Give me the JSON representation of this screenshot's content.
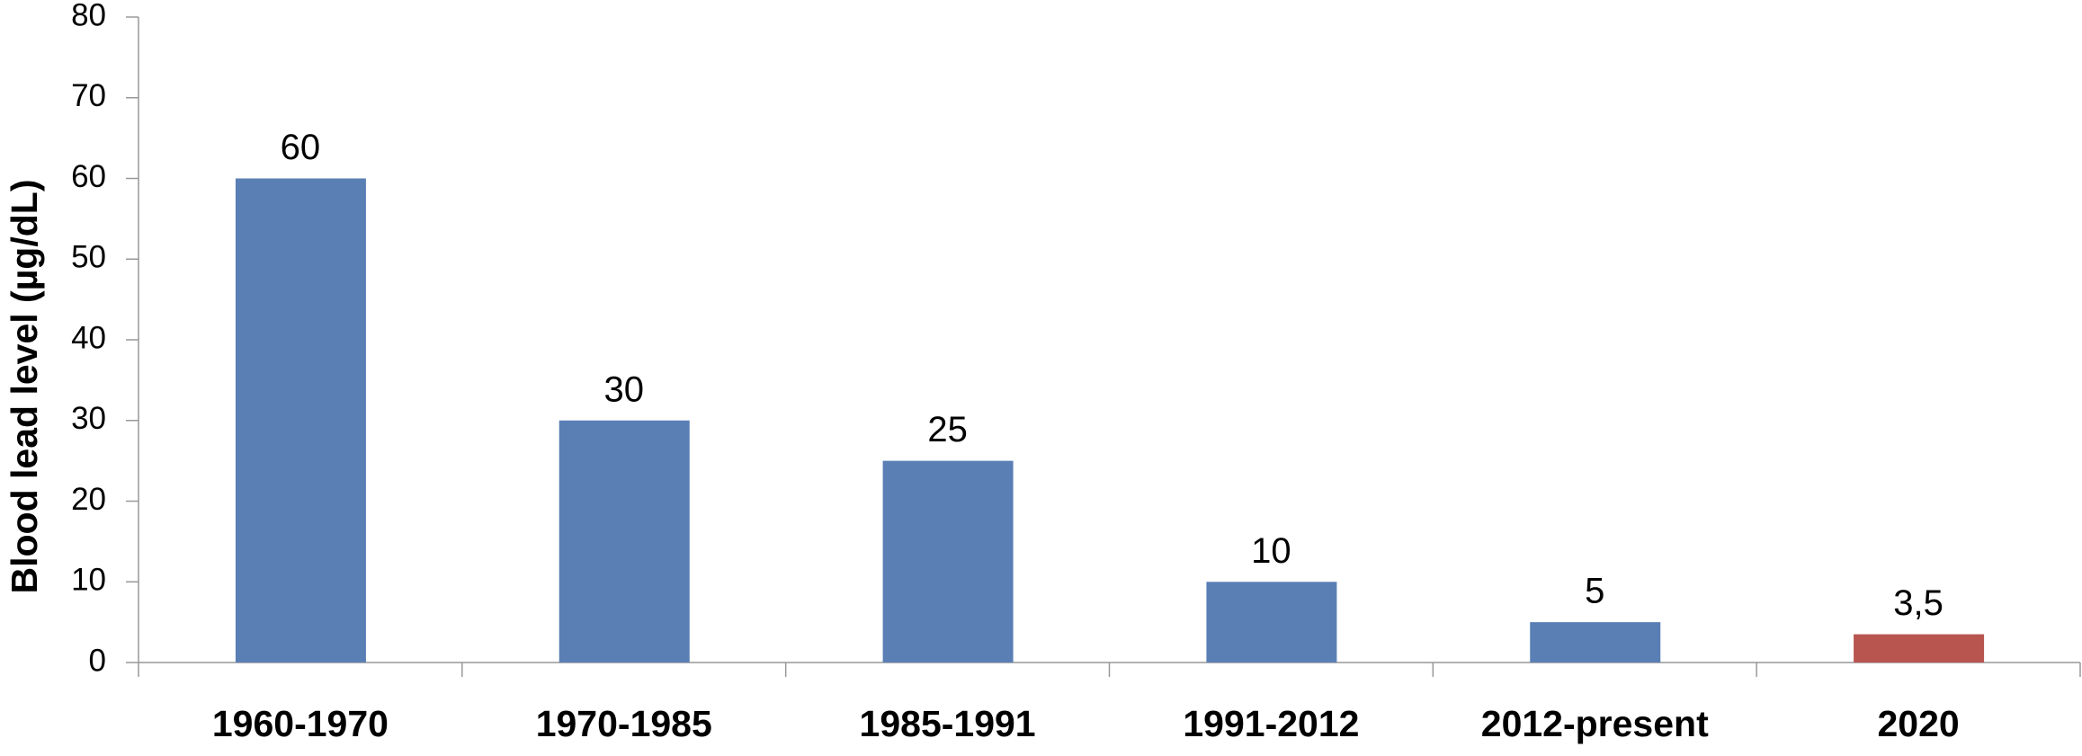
{
  "chart_data": {
    "type": "bar",
    "y_label": "Blood lead level (µg/dL)",
    "categories": [
      "1960-1970",
      "1970-1985",
      "1985-1991",
      "1991-2012",
      "2012-present",
      "2020"
    ],
    "values": [
      60,
      30,
      25,
      10,
      5,
      3.5
    ],
    "value_labels": [
      "60",
      "30",
      "25",
      "10",
      "5",
      "3,5"
    ],
    "colors": [
      "#5a7fb5",
      "#5a7fb5",
      "#5a7fb5",
      "#5a7fb5",
      "#5a7fb5",
      "#b8554f"
    ],
    "ylim": [
      0,
      80
    ],
    "yticks": [
      0,
      10,
      20,
      30,
      40,
      50,
      60,
      70,
      80
    ],
    "grid": false
  }
}
